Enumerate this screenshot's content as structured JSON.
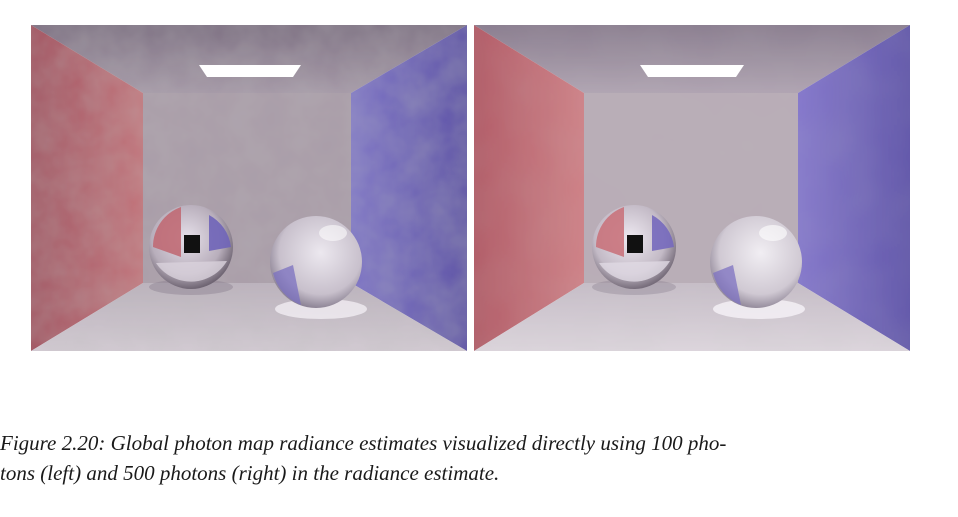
{
  "figure": {
    "caption_line1": "Figure 2.20: Global photon map radiance estimates visualized directly using 100 pho-",
    "caption_line2": "tons (left) and 500 photons (right) in the radiance estimate."
  },
  "panels": [
    {
      "id": "left",
      "noise": "high"
    },
    {
      "id": "right",
      "noise": "low"
    }
  ],
  "colors": {
    "left_wall": "#b8616b",
    "right_wall": "#6b5fb4",
    "back_wall": "#a99ca8",
    "ceiling": "#8e8090",
    "floor": "#c8bfc8",
    "light": "#ffffff"
  }
}
